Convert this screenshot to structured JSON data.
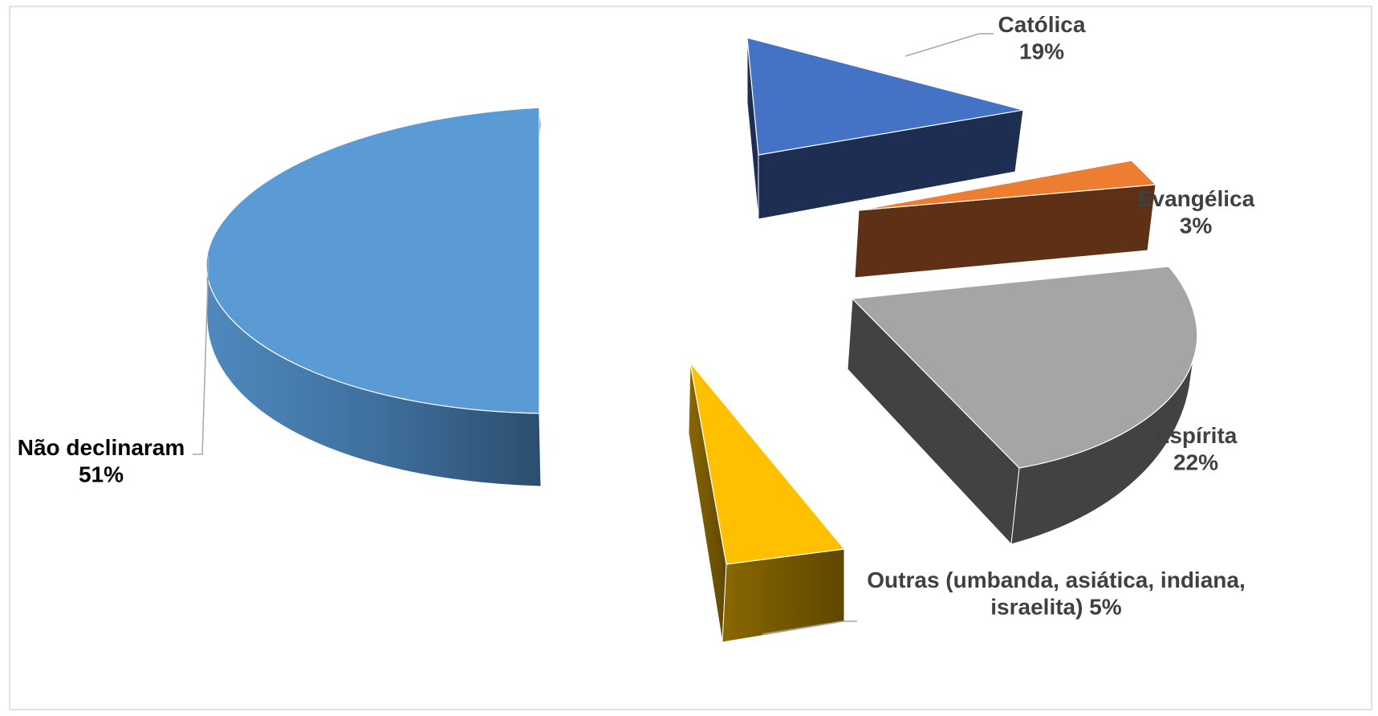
{
  "chart_data": {
    "type": "pie",
    "style": "3d-exploded",
    "title": "",
    "slices": [
      {
        "label": "Católica",
        "value": 19,
        "pct_text": "19%",
        "color": "#4472C4",
        "side_color": "#1E2D52",
        "label_color": "#404040",
        "label_lines": [
          "Católica",
          "19%"
        ]
      },
      {
        "label": "Evangélica",
        "value": 3,
        "pct_text": "3%",
        "color": "#ED7D31",
        "side_color": "#5E3116",
        "label_color": "#404040",
        "label_lines": [
          "Evangélica",
          "3%"
        ]
      },
      {
        "label": "Espírita",
        "value": 22,
        "pct_text": "22%",
        "color": "#A5A5A5",
        "side_color": "#424242",
        "label_color": "#404040",
        "label_lines": [
          "Espírita",
          "22%"
        ]
      },
      {
        "label": "Outras (umbanda, asiática, indiana, israelita)",
        "value": 5,
        "pct_text": "5%",
        "color": "#FFC000",
        "side_color": "#6B5100",
        "label_color": "#404040",
        "label_lines": [
          "Outras (umbanda, asiática, indiana,",
          "israelita) 5%"
        ]
      },
      {
        "label": "Não declinaram",
        "value": 51,
        "pct_text": "51%",
        "color": "#5B9BD5",
        "side_color": "#2E5478",
        "label_color": "#000000",
        "label_lines": [
          "Não declinaram",
          "51%"
        ]
      }
    ]
  }
}
